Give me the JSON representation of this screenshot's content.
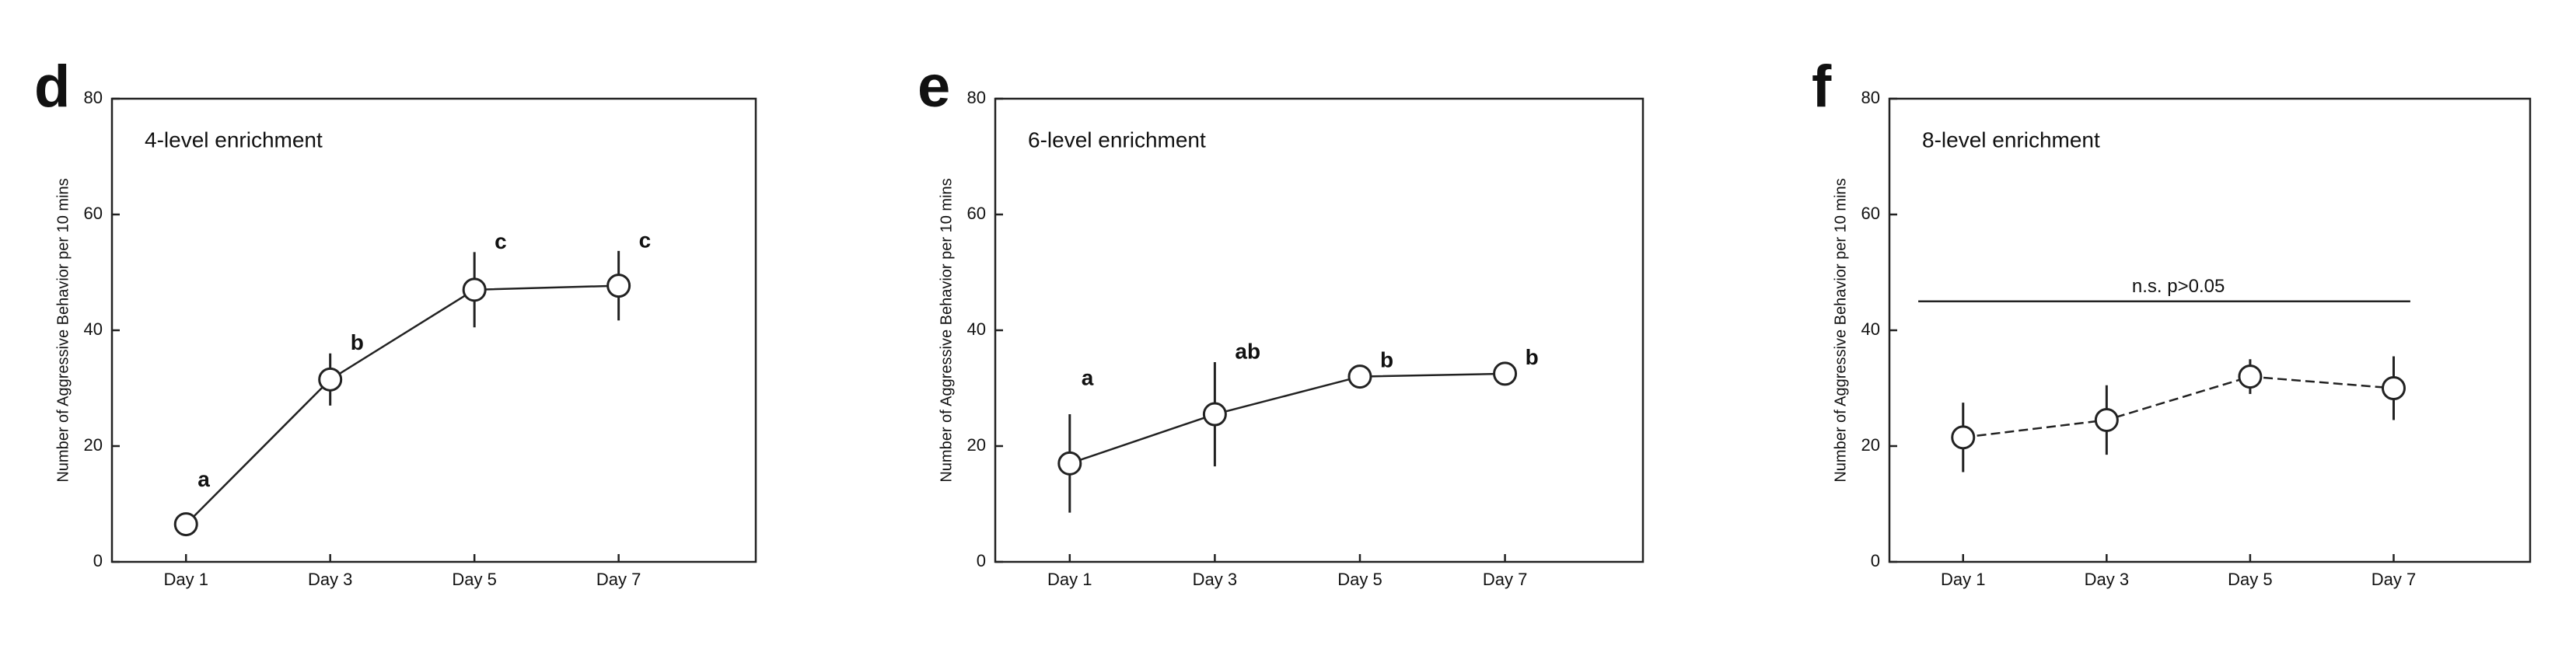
{
  "chart_data": [
    {
      "type": "line",
      "panel": "d",
      "title": "4-level enrichment",
      "y_label": "Number of Aggressive Behavior per 10 mins",
      "categories": [
        "Day 1",
        "Day 3",
        "Day 5",
        "Day 7"
      ],
      "values": [
        6.5,
        31.5,
        47,
        47.7
      ],
      "errors": [
        1.5,
        4.5,
        6.5,
        6
      ],
      "significance_labels": [
        "a",
        "b",
        "c",
        "c"
      ],
      "line_style": "solid",
      "color": "#222222",
      "ylim": [
        0,
        80
      ],
      "yticks": [
        0,
        20,
        40,
        60,
        80
      ]
    },
    {
      "type": "line",
      "panel": "e",
      "title": "6-level enrichment",
      "y_label": "Number of Aggressive Behavior per 10 mins",
      "categories": [
        "Day 1",
        "Day 3",
        "Day 5",
        "Day 7"
      ],
      "values": [
        17,
        25.5,
        32,
        32.5
      ],
      "errors": [
        8.5,
        9,
        1,
        1
      ],
      "significance_labels": [
        "a",
        "ab",
        "b",
        "b"
      ],
      "line_style": "solid",
      "color": "#222222",
      "ylim": [
        0,
        80
      ],
      "yticks": [
        0,
        20,
        40,
        60,
        80
      ]
    },
    {
      "type": "line",
      "panel": "f",
      "title": "8-level enrichment",
      "y_label": "Number of Aggressive Behavior per 10 mins",
      "categories": [
        "Day 1",
        "Day 3",
        "Day 5",
        "Day 7"
      ],
      "values": [
        21.5,
        24.5,
        32,
        30
      ],
      "errors": [
        6,
        6,
        3,
        5.5
      ],
      "line_style": "dashed",
      "color": "#222222",
      "annotation": {
        "text": "n.s.  p>0.05",
        "y": 45
      },
      "ylim": [
        0,
        80
      ],
      "yticks": [
        0,
        20,
        40,
        60,
        80
      ]
    }
  ]
}
